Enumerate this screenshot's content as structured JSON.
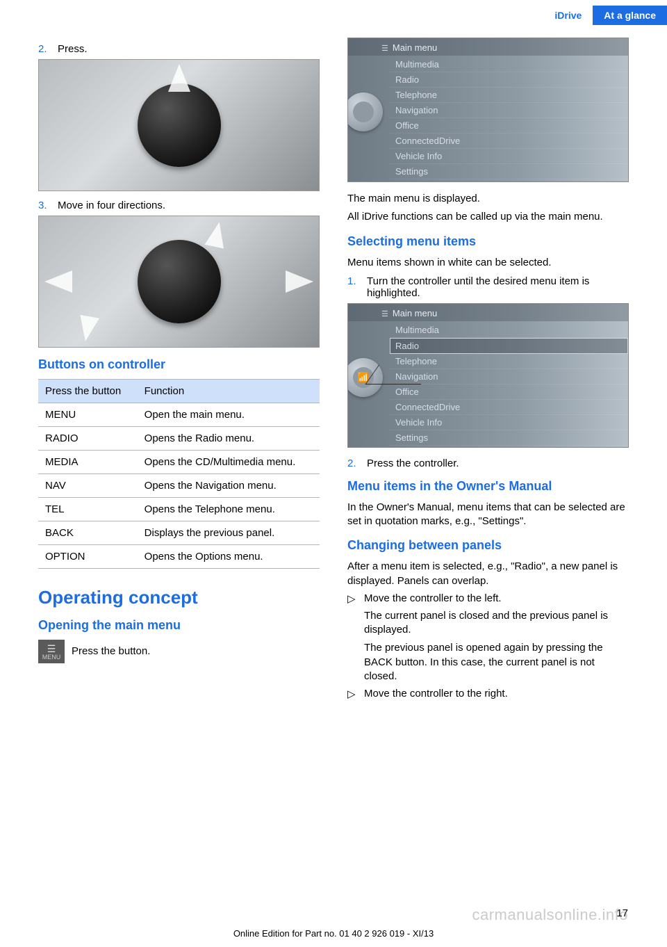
{
  "header": {
    "left_tab": "iDrive",
    "right_tab": "At a glance"
  },
  "colors": {
    "accent_blue": "#1d6de2",
    "header_bg": "#1d6de2",
    "table_header_bg": "#cfe0fa",
    "table_border": "#9cb9e6",
    "screen_bg_start": "#6e7a84",
    "screen_bg_end": "#b5c0c8",
    "screen_text": "#d7dee6",
    "screen_title_text": "#e6ecf2"
  },
  "left": {
    "step2": {
      "num": "2.",
      "text": "Press."
    },
    "step3": {
      "num": "3.",
      "text": "Move in four directions."
    },
    "buttons_heading": "Buttons on controller",
    "table": {
      "header": {
        "col1": "Press the but­ton",
        "col2": "Function"
      },
      "rows": [
        {
          "c1": "MENU",
          "c2": "Open the main menu."
        },
        {
          "c1": "RADIO",
          "c2": "Opens the Radio menu."
        },
        {
          "c1": "MEDIA",
          "c2": "Opens the CD/Multimedia menu."
        },
        {
          "c1": "NAV",
          "c2": "Opens the Navigation menu."
        },
        {
          "c1": "TEL",
          "c2": "Opens the Telephone menu."
        },
        {
          "c1": "BACK",
          "c2": "Displays the previous panel."
        },
        {
          "c1": "OPTION",
          "c2": "Opens the Options menu."
        }
      ]
    },
    "operating_heading": "Operating concept",
    "opening_heading": "Opening the main menu",
    "menu_icon_label": "MENU",
    "press_button_text": "Press the button."
  },
  "right": {
    "screen1": {
      "title": "Main menu",
      "items": [
        "Multimedia",
        "Radio",
        "Telephone",
        "Navigation",
        "Office",
        "ConnectedDrive",
        "Vehicle Info",
        "Settings"
      ],
      "selected_index": -1,
      "knob_glyph": ""
    },
    "p1": "The main menu is displayed.",
    "p2": "All iDrive functions can be called up via the main menu.",
    "selecting_heading": "Selecting menu items",
    "p3": "Menu items shown in white can be selected.",
    "step1": {
      "num": "1.",
      "text": "Turn the controller until the desired menu item is highlighted."
    },
    "screen2": {
      "title": "Main menu",
      "items": [
        "Multimedia",
        "Radio",
        "Telephone",
        "Navigation",
        "Office",
        "ConnectedDrive",
        "Vehicle Info",
        "Settings"
      ],
      "selected_index": 1,
      "knob_glyph": "📶",
      "pointer": true
    },
    "step2b": {
      "num": "2.",
      "text": "Press the controller."
    },
    "menuitems_heading": "Menu items in the Owner's Manual",
    "p4": "In the Owner's Manual, menu items that can be selected are set in quotation marks, e.g., \"Settings\".",
    "changing_heading": "Changing between panels",
    "p5": "After a menu item is selected, e.g., \"Radio\", a new panel is displayed. Panels can overlap.",
    "bullets": [
      {
        "mark": "▷",
        "text": "Move the controller to the left.",
        "sub": [
          "The current panel is closed and the previ­ous panel is displayed.",
          "The previous panel is opened again by pressing the BACK button. In this case, the current panel is not closed."
        ]
      },
      {
        "mark": "▷",
        "text": "Move the controller to the right."
      }
    ]
  },
  "footer": {
    "page_num": "17",
    "watermark": "carmanualsonline.info",
    "edition_line": "Online Edition for Part no. 01 40 2 926 019 - XI/13"
  }
}
